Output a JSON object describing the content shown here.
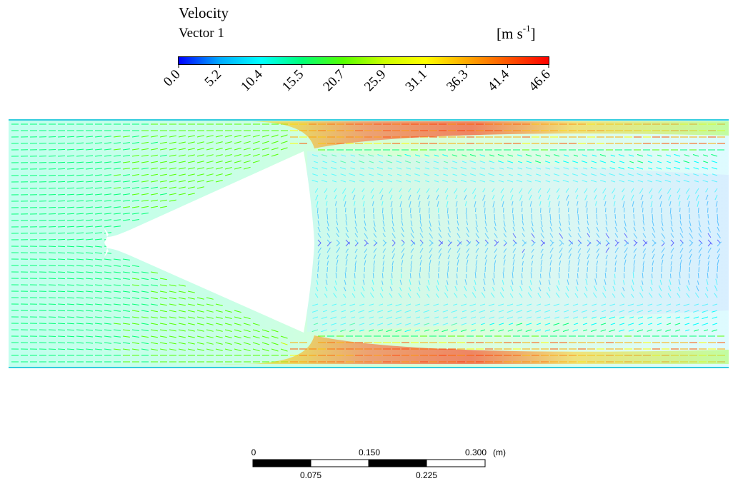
{
  "legend": {
    "title": "Velocity",
    "subtitle": "Vector 1",
    "unit_base": "[m s",
    "unit_sup": "-1",
    "unit_close": "]",
    "ticks": [
      "0.0",
      "5.2",
      "10.4",
      "15.5",
      "20.7",
      "25.9",
      "31.1",
      "36.3",
      "41.4",
      "46.6"
    ],
    "min": 0.0,
    "max": 46.6,
    "colormap": [
      "#0000ff",
      "#00aaff",
      "#00ffff",
      "#00ff77",
      "#55ff00",
      "#ccff00",
      "#ffff00",
      "#ffaa00",
      "#ff5500",
      "#ff0000"
    ]
  },
  "scale_bar": {
    "top_labels": [
      "0",
      "0.150",
      "0.300"
    ],
    "unit": "(m)",
    "bottom_labels": [
      "0.075",
      "0.225"
    ],
    "segment_colors": [
      "#000000",
      "#ffffff",
      "#000000",
      "#ffffff"
    ]
  }
}
